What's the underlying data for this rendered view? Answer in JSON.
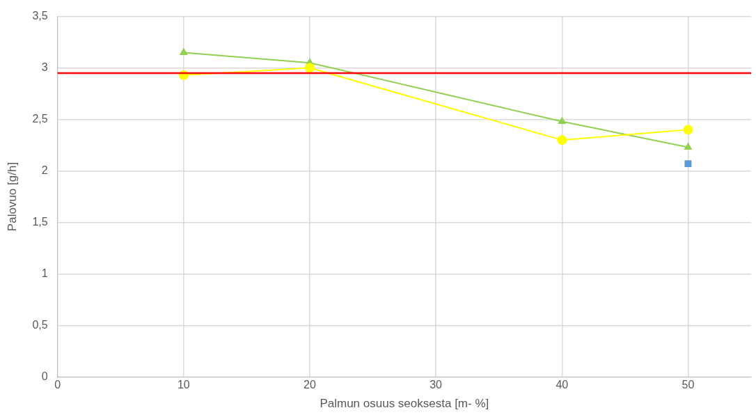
{
  "chart_data": {
    "type": "line",
    "xlabel": "Palmun osuus seoksesta [m- %]",
    "ylabel": "Palovuo [g/h]",
    "x": [
      10,
      20,
      40,
      50
    ],
    "series": [
      {
        "color": "#ffff00",
        "marker": "circle",
        "values": [
          2.93,
          3.0,
          2.3,
          2.4
        ]
      },
      {
        "color": "#92d050",
        "marker": "triangle",
        "values": [
          3.15,
          3.05,
          2.48,
          2.23
        ]
      },
      {
        "type": "scatter",
        "color": "#5b9bd5",
        "marker": "square",
        "x": [
          50
        ],
        "values": [
          2.07
        ]
      }
    ],
    "ref_lines": [
      {
        "axis": "y",
        "value": 2.95,
        "color": "#ff0000"
      }
    ],
    "xlim": [
      0,
      55
    ],
    "xticks": [
      0,
      10,
      20,
      30,
      40,
      50
    ],
    "ylim": [
      0,
      3.5
    ],
    "yticks": [
      0,
      {
        "value": 0.5,
        "label": "0,5"
      },
      1,
      {
        "value": 1.5,
        "label": "1,5"
      },
      2,
      {
        "value": 2.5,
        "label": "2,5"
      },
      3,
      {
        "value": 3.5,
        "label": "3,5"
      }
    ],
    "grid": true,
    "legend": false
  }
}
